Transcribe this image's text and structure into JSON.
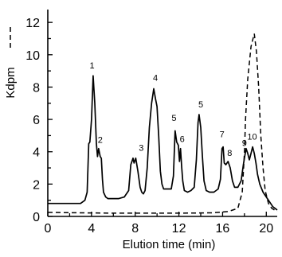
{
  "chart_data": {
    "type": "line",
    "xlabel": "Elution time (min)",
    "ylabel": "Kdpm",
    "xlim": [
      0,
      21
    ],
    "ylim": [
      0,
      12.5
    ],
    "xticks": [
      "0",
      "4",
      "8",
      "12",
      "16",
      "20"
    ],
    "yticks": [
      "0",
      "2",
      "4",
      "6",
      "8",
      "10",
      "12"
    ],
    "grid": false,
    "legend": "none",
    "series": [
      {
        "style": "solid",
        "x": [
          0,
          2.5,
          3.0,
          3.4,
          3.6,
          3.75,
          3.85,
          4.0,
          4.15,
          4.3,
          4.45,
          4.55,
          4.65,
          4.8,
          4.9,
          5.0,
          5.1,
          5.3,
          5.5,
          6.0,
          6.5,
          7.0,
          7.4,
          7.6,
          7.8,
          7.9,
          8.05,
          8.25,
          8.45,
          8.6,
          8.75,
          8.9,
          9.1,
          9.3,
          9.5,
          9.7,
          9.85,
          10.0,
          10.15,
          10.3,
          10.45,
          10.6,
          10.8,
          11.0,
          11.3,
          11.5,
          11.65,
          11.8,
          11.95,
          12.05,
          12.15,
          12.25,
          12.35,
          12.5,
          12.8,
          13.1,
          13.4,
          13.6,
          13.75,
          13.85,
          14.0,
          14.15,
          14.3,
          14.5,
          14.8,
          15.2,
          15.6,
          15.8,
          15.95,
          16.05,
          16.15,
          16.3,
          16.5,
          16.7,
          16.9,
          17.1,
          17.4,
          17.7,
          17.9,
          18.05,
          18.15,
          18.3,
          18.45,
          18.6,
          18.75,
          18.9,
          19.05,
          19.2,
          19.4,
          19.7,
          20.0,
          20.3,
          20.6,
          21.0
        ],
        "y": [
          0.8,
          0.8,
          0.8,
          1.0,
          1.5,
          4.5,
          4.6,
          6.0,
          8.7,
          7.0,
          4.5,
          3.7,
          4.2,
          3.7,
          3.6,
          2.3,
          1.5,
          1.2,
          1.1,
          1.1,
          1.1,
          1.2,
          1.6,
          3.2,
          3.6,
          3.3,
          3.6,
          2.8,
          1.8,
          1.5,
          1.4,
          1.6,
          3.0,
          5.5,
          7.0,
          7.9,
          7.3,
          6.8,
          5.0,
          2.8,
          2.0,
          1.7,
          1.7,
          1.7,
          1.7,
          2.5,
          5.3,
          4.6,
          4.4,
          3.4,
          4.2,
          3.1,
          2.2,
          1.6,
          1.5,
          1.6,
          1.8,
          3.5,
          5.8,
          6.3,
          5.5,
          3.7,
          2.2,
          1.6,
          1.5,
          1.5,
          1.7,
          2.3,
          4.2,
          4.3,
          3.3,
          3.2,
          3.4,
          3.0,
          2.2,
          1.8,
          1.8,
          2.2,
          3.2,
          3.8,
          4.2,
          3.9,
          3.5,
          3.9,
          4.3,
          3.9,
          3.3,
          2.6,
          2.0,
          1.5,
          1.2,
          0.9,
          0.6,
          0.4
        ]
      },
      {
        "style": "dashed",
        "x": [
          0,
          3,
          6,
          9,
          12,
          15,
          16.5,
          17.4,
          17.8,
          18.0,
          18.1,
          18.3,
          18.6,
          18.9,
          19.1,
          19.3,
          19.5,
          19.7,
          19.9,
          20.2,
          20.5,
          21.0
        ],
        "y": [
          0.25,
          0.22,
          0.2,
          0.2,
          0.2,
          0.22,
          0.3,
          0.5,
          1.5,
          4.0,
          6.0,
          8.5,
          10.5,
          11.3,
          10.2,
          8.0,
          5.0,
          3.0,
          1.6,
          0.8,
          0.5,
          0.3
        ]
      }
    ],
    "annotations": [
      {
        "text": "1",
        "x": 4.05,
        "y": 9.15
      },
      {
        "text": "2",
        "x": 4.8,
        "y": 4.55
      },
      {
        "text": "3",
        "x": 8.55,
        "y": 4.05
      },
      {
        "text": "4",
        "x": 9.85,
        "y": 8.4
      },
      {
        "text": "5",
        "x": 11.55,
        "y": 5.9
      },
      {
        "text": "6",
        "x": 12.3,
        "y": 4.6
      },
      {
        "text": "5",
        "x": 14.0,
        "y": 6.75
      },
      {
        "text": "7",
        "x": 15.95,
        "y": 4.9
      },
      {
        "text": "8",
        "x": 16.65,
        "y": 3.75
      },
      {
        "text": "9",
        "x": 18.0,
        "y": 4.35
      },
      {
        "text": "10",
        "x": 18.7,
        "y": 4.75
      }
    ]
  }
}
